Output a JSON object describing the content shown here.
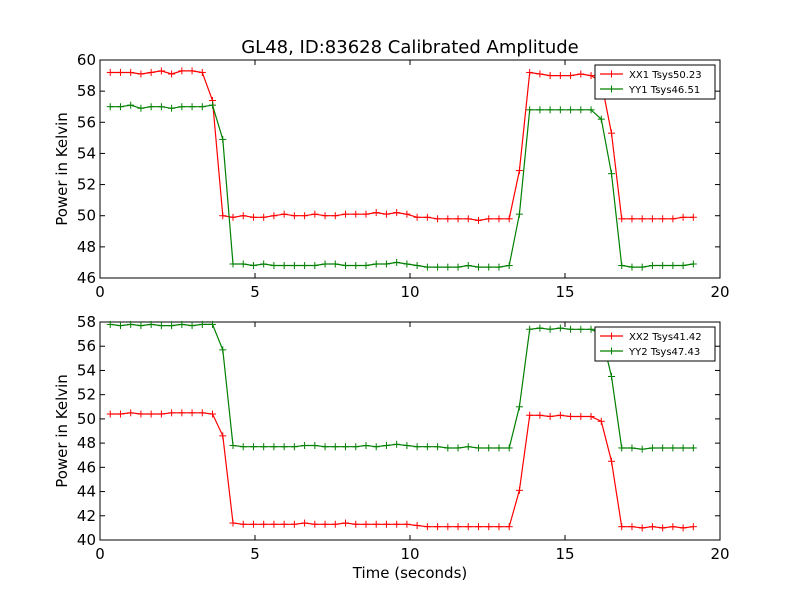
{
  "chart_data": [
    {
      "type": "line",
      "title": "GL48, ID:83628 Calibrated Amplitude",
      "xlabel": "",
      "ylabel": "Power in Kelvin",
      "xlim": [
        0,
        20
      ],
      "ylim": [
        46,
        60
      ],
      "xticks": [
        "0",
        "5",
        "10",
        "15",
        "20"
      ],
      "yticks": [
        "46",
        "48",
        "50",
        "52",
        "54",
        "56",
        "58",
        "60"
      ],
      "legend_position": "top-right",
      "grid": false,
      "x": [
        0.33,
        0.66,
        0.99,
        1.32,
        1.65,
        1.98,
        2.31,
        2.64,
        2.97,
        3.3,
        3.63,
        3.96,
        4.29,
        4.62,
        4.95,
        5.28,
        5.61,
        5.94,
        6.27,
        6.6,
        6.93,
        7.26,
        7.59,
        7.92,
        8.25,
        8.58,
        8.91,
        9.24,
        9.57,
        9.9,
        10.23,
        10.56,
        10.89,
        11.22,
        11.55,
        11.88,
        12.21,
        12.54,
        12.87,
        13.2,
        13.53,
        13.86,
        14.19,
        14.52,
        14.85,
        15.18,
        15.51,
        15.84,
        16.17,
        16.5,
        16.83,
        17.16,
        17.49,
        17.82,
        18.15,
        18.48,
        18.81,
        19.14
      ],
      "series": [
        {
          "name": "XX1 Tsys50.23",
          "color": "#ff0000",
          "values": [
            59.2,
            59.2,
            59.2,
            59.1,
            59.2,
            59.3,
            59.1,
            59.3,
            59.3,
            59.2,
            57.4,
            50.0,
            49.9,
            50.0,
            49.9,
            49.9,
            50.0,
            50.1,
            50.0,
            50.0,
            50.1,
            50.0,
            50.0,
            50.1,
            50.1,
            50.1,
            50.2,
            50.1,
            50.2,
            50.1,
            49.9,
            49.9,
            49.8,
            49.8,
            49.8,
            49.8,
            49.7,
            49.8,
            49.8,
            49.8,
            52.9,
            59.2,
            59.1,
            59.0,
            59.0,
            59.0,
            59.1,
            59.0,
            58.6,
            55.3,
            49.8,
            49.8,
            49.8,
            49.8,
            49.8,
            49.8,
            49.9,
            49.9
          ]
        },
        {
          "name": "YY1 Tsys46.51",
          "color": "#008000",
          "values": [
            57.0,
            57.0,
            57.1,
            56.9,
            57.0,
            57.0,
            56.9,
            57.0,
            57.0,
            57.0,
            57.1,
            54.9,
            46.9,
            46.9,
            46.8,
            46.9,
            46.8,
            46.8,
            46.8,
            46.8,
            46.8,
            46.9,
            46.9,
            46.8,
            46.8,
            46.8,
            46.9,
            46.9,
            47.0,
            46.9,
            46.8,
            46.7,
            46.7,
            46.7,
            46.7,
            46.8,
            46.7,
            46.7,
            46.7,
            46.8,
            50.1,
            56.8,
            56.8,
            56.8,
            56.8,
            56.8,
            56.8,
            56.8,
            56.2,
            52.7,
            46.8,
            46.7,
            46.7,
            46.8,
            46.8,
            46.8,
            46.8,
            46.9
          ]
        }
      ]
    },
    {
      "type": "line",
      "title": "",
      "xlabel": "Time (seconds)",
      "ylabel": "Power in Kelvin",
      "xlim": [
        0,
        20
      ],
      "ylim": [
        40,
        58
      ],
      "xticks": [
        "0",
        "5",
        "10",
        "15",
        "20"
      ],
      "yticks": [
        "40",
        "42",
        "44",
        "46",
        "48",
        "50",
        "52",
        "54",
        "56",
        "58"
      ],
      "legend_position": "top-right",
      "grid": false,
      "x": [
        0.33,
        0.66,
        0.99,
        1.32,
        1.65,
        1.98,
        2.31,
        2.64,
        2.97,
        3.3,
        3.63,
        3.96,
        4.29,
        4.62,
        4.95,
        5.28,
        5.61,
        5.94,
        6.27,
        6.6,
        6.93,
        7.26,
        7.59,
        7.92,
        8.25,
        8.58,
        8.91,
        9.24,
        9.57,
        9.9,
        10.23,
        10.56,
        10.89,
        11.22,
        11.55,
        11.88,
        12.21,
        12.54,
        12.87,
        13.2,
        13.53,
        13.86,
        14.19,
        14.52,
        14.85,
        15.18,
        15.51,
        15.84,
        16.17,
        16.5,
        16.83,
        17.16,
        17.49,
        17.82,
        18.15,
        18.48,
        18.81,
        19.14
      ],
      "series": [
        {
          "name": "XX2 Tsys41.42",
          "color": "#ff0000",
          "values": [
            50.4,
            50.4,
            50.5,
            50.4,
            50.4,
            50.4,
            50.5,
            50.5,
            50.5,
            50.5,
            50.4,
            48.6,
            41.4,
            41.3,
            41.3,
            41.3,
            41.3,
            41.3,
            41.3,
            41.4,
            41.3,
            41.3,
            41.3,
            41.4,
            41.3,
            41.3,
            41.3,
            41.3,
            41.3,
            41.3,
            41.2,
            41.1,
            41.1,
            41.1,
            41.1,
            41.1,
            41.1,
            41.1,
            41.1,
            41.1,
            44.1,
            50.3,
            50.3,
            50.2,
            50.3,
            50.2,
            50.2,
            50.2,
            49.8,
            46.5,
            41.1,
            41.1,
            41.0,
            41.1,
            41.0,
            41.1,
            41.0,
            41.1
          ]
        },
        {
          "name": "YY2 Tsys47.43",
          "color": "#008000",
          "values": [
            57.8,
            57.7,
            57.8,
            57.7,
            57.8,
            57.7,
            57.7,
            57.8,
            57.7,
            57.8,
            57.8,
            55.7,
            47.8,
            47.7,
            47.7,
            47.7,
            47.7,
            47.7,
            47.7,
            47.8,
            47.8,
            47.7,
            47.7,
            47.7,
            47.7,
            47.8,
            47.7,
            47.8,
            47.9,
            47.8,
            47.7,
            47.7,
            47.7,
            47.6,
            47.6,
            47.7,
            47.6,
            47.6,
            47.6,
            47.6,
            51.0,
            57.4,
            57.5,
            57.4,
            57.5,
            57.4,
            57.4,
            57.4,
            57.0,
            53.5,
            47.6,
            47.6,
            47.5,
            47.6,
            47.6,
            47.6,
            47.6,
            47.6
          ]
        }
      ]
    }
  ]
}
